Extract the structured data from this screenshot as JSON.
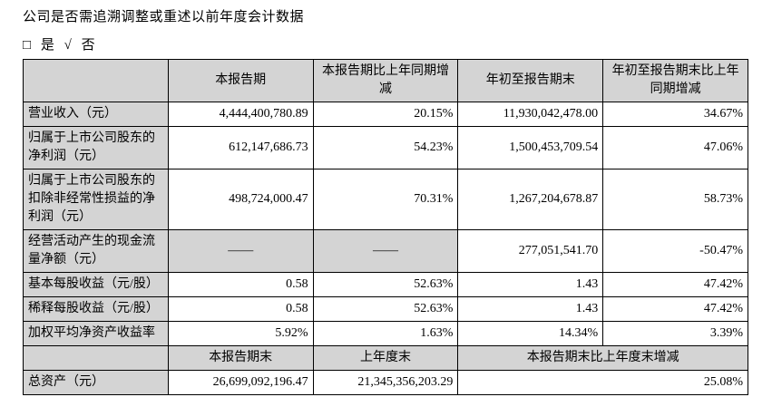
{
  "page": {
    "title": "公司是否需追溯调整或重述以前年度会计数据",
    "option_line": {
      "box_glyph": "□",
      "yes_label": "是",
      "check_glyph": "√",
      "no_label": "否"
    }
  },
  "table": {
    "columns": [
      "",
      "本报告期",
      "本报告期比上年同期增减",
      "年初至报告期末",
      "年初至报告期末比上年同期增减"
    ],
    "rows": [
      {
        "label": "营业收入（元）",
        "values": [
          "4,444,400,780.89",
          "20.15%",
          "11,930,042,478.00",
          "34.67%"
        ]
      },
      {
        "label": "归属于上市公司股东的净利润（元）",
        "values": [
          "612,147,686.73",
          "54.23%",
          "1,500,453,709.54",
          "47.06%"
        ]
      },
      {
        "label": "归属于上市公司股东的扣除非经常性损益的净利润（元）",
        "values": [
          "498,724,000.47",
          "70.31%",
          "1,267,204,678.87",
          "58.73%"
        ]
      },
      {
        "label": "经营活动产生的现金流量净额（元）",
        "values": [
          "——",
          "——",
          "277,051,541.70",
          "-50.47%"
        ],
        "dash_cols": [
          0,
          1
        ]
      },
      {
        "label": "基本每股收益（元/股）",
        "values": [
          "0.58",
          "52.63%",
          "1.43",
          "47.42%"
        ]
      },
      {
        "label": "稀释每股收益（元/股）",
        "values": [
          "0.58",
          "52.63%",
          "1.43",
          "47.42%"
        ]
      },
      {
        "label": "加权平均净资产收益率",
        "values": [
          "5.92%",
          "1.63%",
          "14.34%",
          "3.39%"
        ]
      }
    ],
    "period_end_header": [
      "本报告期末",
      "上年度末",
      "本报告期末比上年度末增减"
    ],
    "period_end_row": {
      "label": "总资产（元）",
      "values": [
        "26,699,092,196.47",
        "21,345,356,203.29",
        "25.08%"
      ]
    }
  },
  "colors": {
    "header_fill": "#d4d4d4",
    "border": "#000000",
    "text": "#000000"
  }
}
